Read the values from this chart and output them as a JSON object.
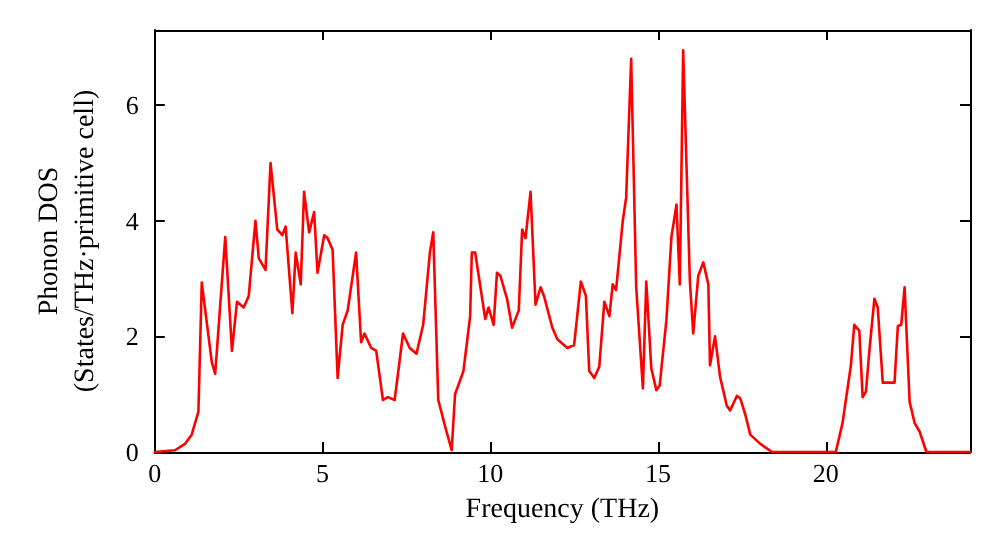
{
  "chart_data": {
    "type": "line",
    "xlabel": "Frequency (THz)",
    "ylabel": "Phonon DOS\n(States/THz·primitive cell)",
    "xlim": [
      0,
      24.3
    ],
    "ylim": [
      0,
      7.3
    ],
    "xticks": [
      0,
      5,
      10,
      15,
      20
    ],
    "yticks": [
      0,
      2,
      4,
      6
    ],
    "marker": "none",
    "line_style": "solid",
    "series": [
      {
        "color": "#ff0000",
        "x": [
          0,
          0.6,
          0.9,
          1.1,
          1.3,
          1.4,
          1.58,
          1.7,
          1.8,
          2.1,
          2.3,
          2.45,
          2.65,
          2.8,
          3.0,
          3.1,
          3.3,
          3.45,
          3.65,
          3.8,
          3.9,
          4.1,
          4.2,
          4.35,
          4.45,
          4.6,
          4.75,
          4.85,
          5.05,
          5.15,
          5.3,
          5.45,
          5.6,
          5.75,
          6.0,
          6.15,
          6.25,
          6.45,
          6.6,
          6.8,
          6.95,
          7.15,
          7.4,
          7.6,
          7.8,
          8.0,
          8.2,
          8.3,
          8.45,
          8.65,
          8.85,
          8.95,
          9.2,
          9.4,
          9.45,
          9.55,
          9.85,
          9.95,
          10.1,
          10.2,
          10.3,
          10.5,
          10.65,
          10.85,
          10.95,
          11.05,
          11.2,
          11.35,
          11.5,
          11.6,
          11.85,
          12.0,
          12.3,
          12.5,
          12.7,
          12.85,
          12.95,
          13.1,
          13.25,
          13.4,
          13.55,
          13.65,
          13.75,
          13.95,
          14.05,
          14.2,
          14.35,
          14.55,
          14.65,
          14.8,
          14.95,
          15.05,
          15.25,
          15.4,
          15.55,
          15.65,
          15.75,
          15.95,
          16.05,
          16.2,
          16.35,
          16.5,
          16.55,
          16.7,
          16.85,
          17.05,
          17.15,
          17.35,
          17.45,
          17.6,
          17.75,
          18.05,
          18.4,
          20.3,
          20.5,
          20.75,
          20.85,
          21.0,
          21.1,
          21.2,
          21.3,
          21.45,
          21.55,
          21.7,
          22.05,
          22.15,
          22.25,
          22.35,
          22.5,
          22.65,
          22.8,
          23.0,
          24.3
        ],
        "values": [
          0,
          0.03,
          0.14,
          0.3,
          0.7,
          2.93,
          2.1,
          1.55,
          1.35,
          3.72,
          1.75,
          2.6,
          2.5,
          2.7,
          4.0,
          3.35,
          3.15,
          5.0,
          3.85,
          3.75,
          3.9,
          2.4,
          3.45,
          2.9,
          4.5,
          3.8,
          4.15,
          3.1,
          3.75,
          3.7,
          3.5,
          1.28,
          2.2,
          2.45,
          3.45,
          1.9,
          2.05,
          1.8,
          1.75,
          0.9,
          0.95,
          0.9,
          2.05,
          1.8,
          1.7,
          2.2,
          3.45,
          3.8,
          0.9,
          0.45,
          0.03,
          1.0,
          1.4,
          2.35,
          3.45,
          3.45,
          2.3,
          2.5,
          2.2,
          3.1,
          3.05,
          2.65,
          2.15,
          2.45,
          3.85,
          3.7,
          4.5,
          2.55,
          2.85,
          2.7,
          2.15,
          1.95,
          1.8,
          1.85,
          2.95,
          2.7,
          1.4,
          1.28,
          1.48,
          2.6,
          2.35,
          2.9,
          2.8,
          4.0,
          4.4,
          6.8,
          2.85,
          1.1,
          2.95,
          1.45,
          1.07,
          1.15,
          2.28,
          3.72,
          4.28,
          2.9,
          6.95,
          2.95,
          2.05,
          3.05,
          3.28,
          2.9,
          1.5,
          2.0,
          1.3,
          0.8,
          0.72,
          0.97,
          0.93,
          0.65,
          0.3,
          0.14,
          0,
          0,
          0.5,
          1.5,
          2.2,
          2.1,
          0.95,
          1.05,
          1.75,
          2.65,
          2.5,
          1.2,
          1.2,
          2.18,
          2.2,
          2.85,
          0.87,
          0.5,
          0.35,
          0,
          0
        ]
      }
    ]
  }
}
